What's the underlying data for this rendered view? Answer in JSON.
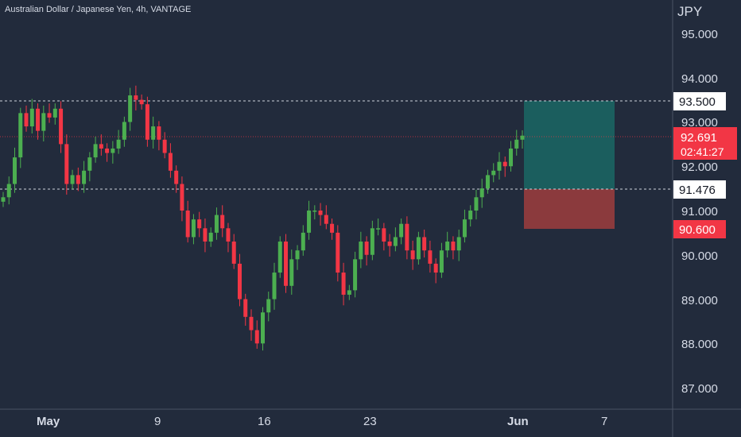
{
  "header": {
    "title": "Australian Dollar / Japanese Yen, 4h, VANTAGE",
    "currency": "JPY"
  },
  "colors": {
    "background": "#222b3c",
    "up": "#26a69a",
    "up_candle": "#4caf50",
    "down_candle": "#f23645",
    "text": "#d6dbe6",
    "profit_zone": "#1b5e5e",
    "loss_zone": "#8b3a3d"
  },
  "y_axis": {
    "ticks": [
      "95.000",
      "94.000",
      "93.000",
      "92.000",
      "91.000",
      "90.000",
      "89.000",
      "88.000",
      "87.000"
    ]
  },
  "x_axis": {
    "ticks": [
      "May",
      "9",
      "16",
      "23",
      "Jun",
      "7"
    ]
  },
  "price_labels": {
    "target": "93.500",
    "current": "92.691",
    "countdown": "02:41:27",
    "entry": "91.476",
    "stop": "90.600"
  },
  "chart_data": {
    "type": "candlestick",
    "title": "Australian Dollar / Japanese Yen, 4h, VANTAGE",
    "ylabel": "JPY",
    "ylim": [
      86.6,
      95.6
    ],
    "x_tick_labels": [
      "May",
      "9",
      "16",
      "23",
      "Jun",
      "7"
    ],
    "y_tick_labels": [
      "95.000",
      "94.000",
      "93.000",
      "92.000",
      "91.000",
      "90.000",
      "89.000",
      "88.000",
      "87.000"
    ],
    "horizontal_lines": [
      93.5,
      91.476
    ],
    "current_price": 92.691,
    "position": {
      "entry": 91.476,
      "target": 93.5,
      "stop": 90.6
    },
    "close_series": [
      91.3,
      91.6,
      92.2,
      93.2,
      92.9,
      93.3,
      92.8,
      93.2,
      93.1,
      93.3,
      92.5,
      91.6,
      91.8,
      91.6,
      91.9,
      92.2,
      92.5,
      92.4,
      92.3,
      92.4,
      92.6,
      93.0,
      93.6,
      93.5,
      93.4,
      92.6,
      92.9,
      92.6,
      92.3,
      91.9,
      91.6,
      91.0,
      90.4,
      90.8,
      90.6,
      90.3,
      90.5,
      90.9,
      90.6,
      90.3,
      89.8,
      89.0,
      88.6,
      88.3,
      88.0,
      88.7,
      89.0,
      89.6,
      90.3,
      89.3,
      89.9,
      90.1,
      90.5,
      91.0,
      91.0,
      90.9,
      90.7,
      90.5,
      89.6,
      89.1,
      89.2,
      89.9,
      90.3,
      90.0,
      90.6,
      90.6,
      90.3,
      90.2,
      90.4,
      90.7,
      90.1,
      89.9,
      90.4,
      90.1,
      89.8,
      89.6,
      90.1,
      90.3,
      90.1,
      90.4,
      90.8,
      91.0,
      91.3,
      91.5,
      91.8,
      91.9,
      92.1,
      92.0,
      92.4,
      92.6,
      92.691
    ]
  }
}
